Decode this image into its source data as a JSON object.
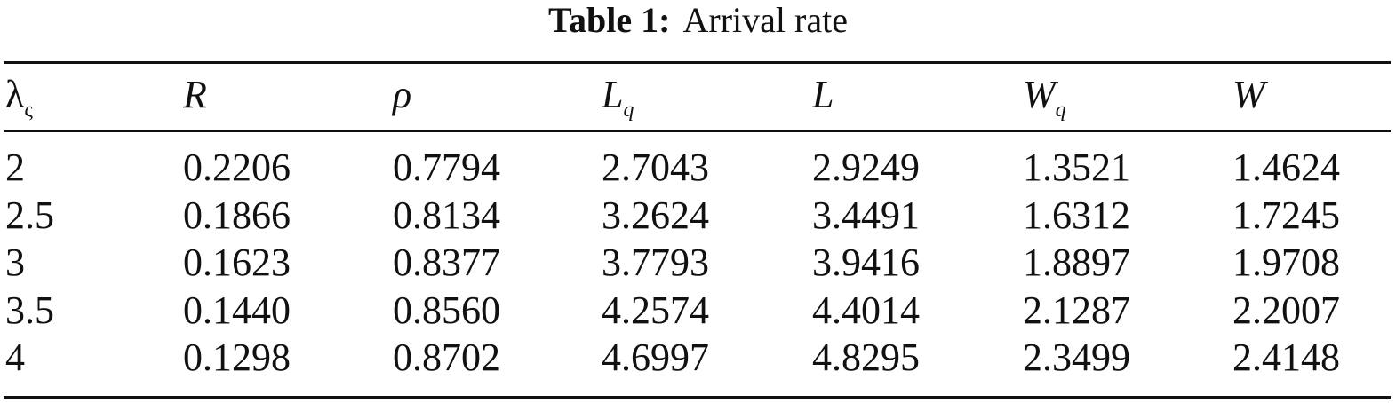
{
  "caption": {
    "label": "Table 1:",
    "text": "Arrival rate"
  },
  "table": {
    "header": [
      {
        "text": "λ",
        "sub": "ς",
        "italic": false
      },
      {
        "text": "R",
        "italic": true
      },
      {
        "text": "ρ",
        "italic": true
      },
      {
        "text": "L",
        "sub": "q",
        "italic": true
      },
      {
        "text": "L",
        "italic": true
      },
      {
        "text": "W",
        "sub": "q",
        "italic": true
      },
      {
        "text": "W",
        "italic": true
      }
    ],
    "rows": [
      [
        "2",
        "0.2206",
        "0.7794",
        "2.7043",
        "2.9249",
        "1.3521",
        "1.4624"
      ],
      [
        "2.5",
        "0.1866",
        "0.8134",
        "3.2624",
        "3.4491",
        "1.6312",
        "1.7245"
      ],
      [
        "3",
        "0.1623",
        "0.8377",
        "3.7793",
        "3.9416",
        "1.8897",
        "1.9708"
      ],
      [
        "3.5",
        "0.1440",
        "0.8560",
        "4.2574",
        "4.4014",
        "2.1287",
        "2.2007"
      ],
      [
        "4",
        "0.1298",
        "0.8702",
        "4.6997",
        "4.8295",
        "2.3499",
        "2.4148"
      ]
    ]
  }
}
